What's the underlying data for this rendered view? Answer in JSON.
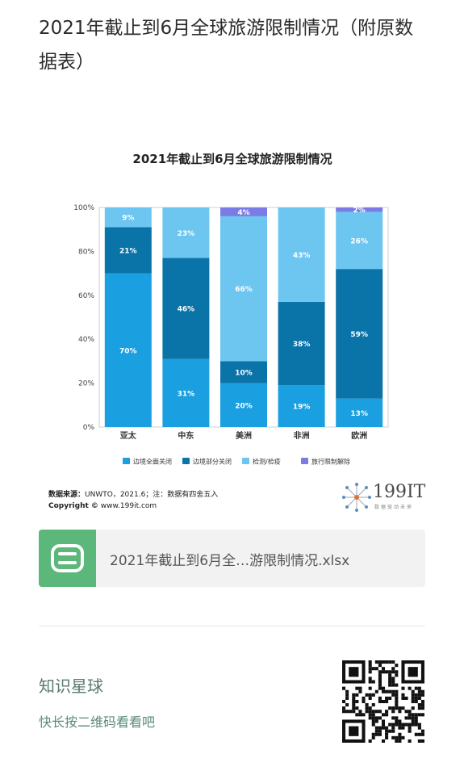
{
  "article": {
    "title": "2021年截止到6月全球旅游限制情况（附原数据表）"
  },
  "chart_data": {
    "type": "bar",
    "stacked": true,
    "title": "2021年截止到6月全球旅游限制情况",
    "categories": [
      "亚太",
      "中东",
      "美洲",
      "非洲",
      "欧洲"
    ],
    "series": [
      {
        "name": "边境全面关闭",
        "color": "#1a9fe0",
        "values": [
          70,
          31,
          20,
          19,
          13
        ]
      },
      {
        "name": "边境部分关闭",
        "color": "#0a73a8",
        "values": [
          21,
          46,
          10,
          38,
          59
        ]
      },
      {
        "name": "检测/检疫",
        "color": "#6cc6f0",
        "values": [
          9,
          23,
          66,
          43,
          26
        ]
      },
      {
        "name": "旅行限制解除",
        "color": "#7b7be6",
        "values": [
          0,
          0,
          4,
          0,
          2
        ]
      }
    ],
    "value_labels": [
      [
        "70%",
        "31%",
        "20%",
        "19%",
        "13%"
      ],
      [
        "21%",
        "46%",
        "10%",
        "38%",
        "59%"
      ],
      [
        "9%",
        "23%",
        "66%",
        "43%",
        "26%"
      ],
      [
        "",
        "",
        "4%",
        "",
        "2%"
      ]
    ],
    "yticks": [
      "0%",
      "20%",
      "40%",
      "60%",
      "80%",
      "100%"
    ],
    "ylim": [
      0,
      100
    ],
    "legend_position": "bottom",
    "grid": false
  },
  "source": {
    "label": "数据来源：",
    "text": "UNWTO，2021.6；注：数据有四舍五入",
    "copyright_label": "Copyright ©",
    "copyright_text": "www.199it.com"
  },
  "brand": {
    "name": "199IT",
    "tagline": "数据驱动未来"
  },
  "file": {
    "name": "2021年截止到6月全…游限制情况.xlsx",
    "icon": "spreadsheet-icon"
  },
  "planet": {
    "title": "知识星球",
    "subtitle": "快长按二维码看看吧"
  }
}
